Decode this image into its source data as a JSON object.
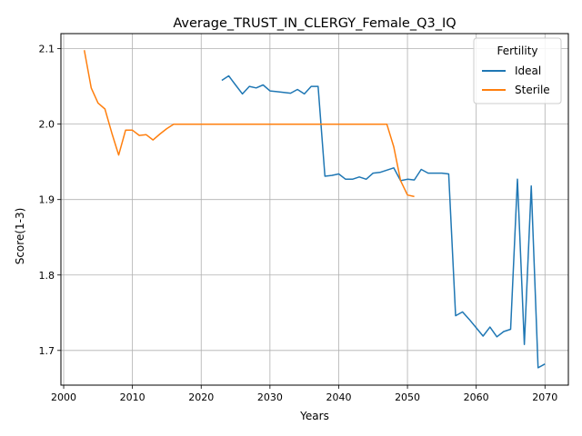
{
  "chart_data": {
    "type": "line",
    "title": "Average_TRUST_IN_CLERGY_Female_Q3_IQ",
    "xlabel": "Years",
    "ylabel": "Score(1-3)",
    "xlim": [
      1999.6,
      2073.4
    ],
    "ylim": [
      1.654,
      2.12
    ],
    "xticks": [
      2000,
      2010,
      2020,
      2030,
      2040,
      2050,
      2060,
      2070
    ],
    "yticks": [
      1.7,
      1.8,
      1.9,
      2.0,
      2.1
    ],
    "ytick_labels": [
      "1.7",
      "1.8",
      "1.9",
      "2.0",
      "2.1"
    ],
    "grid": true,
    "legend": {
      "title": "Fertility",
      "position": "top-right"
    },
    "series": [
      {
        "name": "Ideal",
        "color": "#1f77b4",
        "x": [
          2023,
          2024,
          2025,
          2026,
          2027,
          2028,
          2029,
          2030,
          2031,
          2032,
          2033,
          2034,
          2035,
          2036,
          2037,
          2038,
          2039,
          2040,
          2041,
          2042,
          2043,
          2044,
          2045,
          2046,
          2047,
          2048,
          2049,
          2050,
          2051,
          2052,
          2053,
          2054,
          2055,
          2056,
          2057,
          2058,
          2059,
          2060,
          2061,
          2062,
          2063,
          2064,
          2065,
          2066,
          2067,
          2068,
          2069,
          2070
        ],
        "y": [
          2.058,
          2.064,
          2.052,
          2.04,
          2.05,
          2.048,
          2.052,
          2.044,
          2.043,
          2.042,
          2.041,
          2.046,
          2.04,
          2.05,
          2.05,
          1.931,
          1.932,
          1.934,
          1.927,
          1.927,
          1.93,
          1.927,
          1.935,
          1.936,
          1.939,
          1.942,
          1.925,
          1.927,
          1.926,
          1.94,
          1.935,
          1.935,
          1.935,
          1.934,
          1.746,
          1.751,
          1.741,
          1.73,
          1.719,
          1.731,
          1.718,
          1.725,
          1.728,
          1.927,
          1.708,
          1.918,
          1.677,
          1.682
        ]
      },
      {
        "name": "Sterile",
        "color": "#ff7f0e",
        "x": [
          2003,
          2004,
          2005,
          2006,
          2007,
          2008,
          2009,
          2010,
          2011,
          2012,
          2013,
          2014,
          2015,
          2016,
          2017,
          2018,
          2019,
          2020,
          2021,
          2022,
          2023,
          2024,
          2025,
          2026,
          2027,
          2028,
          2029,
          2030,
          2031,
          2032,
          2033,
          2034,
          2035,
          2036,
          2037,
          2038,
          2039,
          2040,
          2041,
          2042,
          2043,
          2044,
          2045,
          2046,
          2047,
          2048,
          2049,
          2050,
          2051
        ],
        "y": [
          2.098,
          2.048,
          2.028,
          2.02,
          1.988,
          1.959,
          1.992,
          1.992,
          1.985,
          1.986,
          1.979,
          1.987,
          1.994,
          2.0,
          2.0,
          2.0,
          2.0,
          2.0,
          2.0,
          2.0,
          2.0,
          2.0,
          2.0,
          2.0,
          2.0,
          2.0,
          2.0,
          2.0,
          2.0,
          2.0,
          2.0,
          2.0,
          2.0,
          2.0,
          2.0,
          2.0,
          2.0,
          2.0,
          2.0,
          2.0,
          2.0,
          2.0,
          2.0,
          2.0,
          2.0,
          1.97,
          1.925,
          1.906,
          1.904
        ]
      }
    ]
  }
}
